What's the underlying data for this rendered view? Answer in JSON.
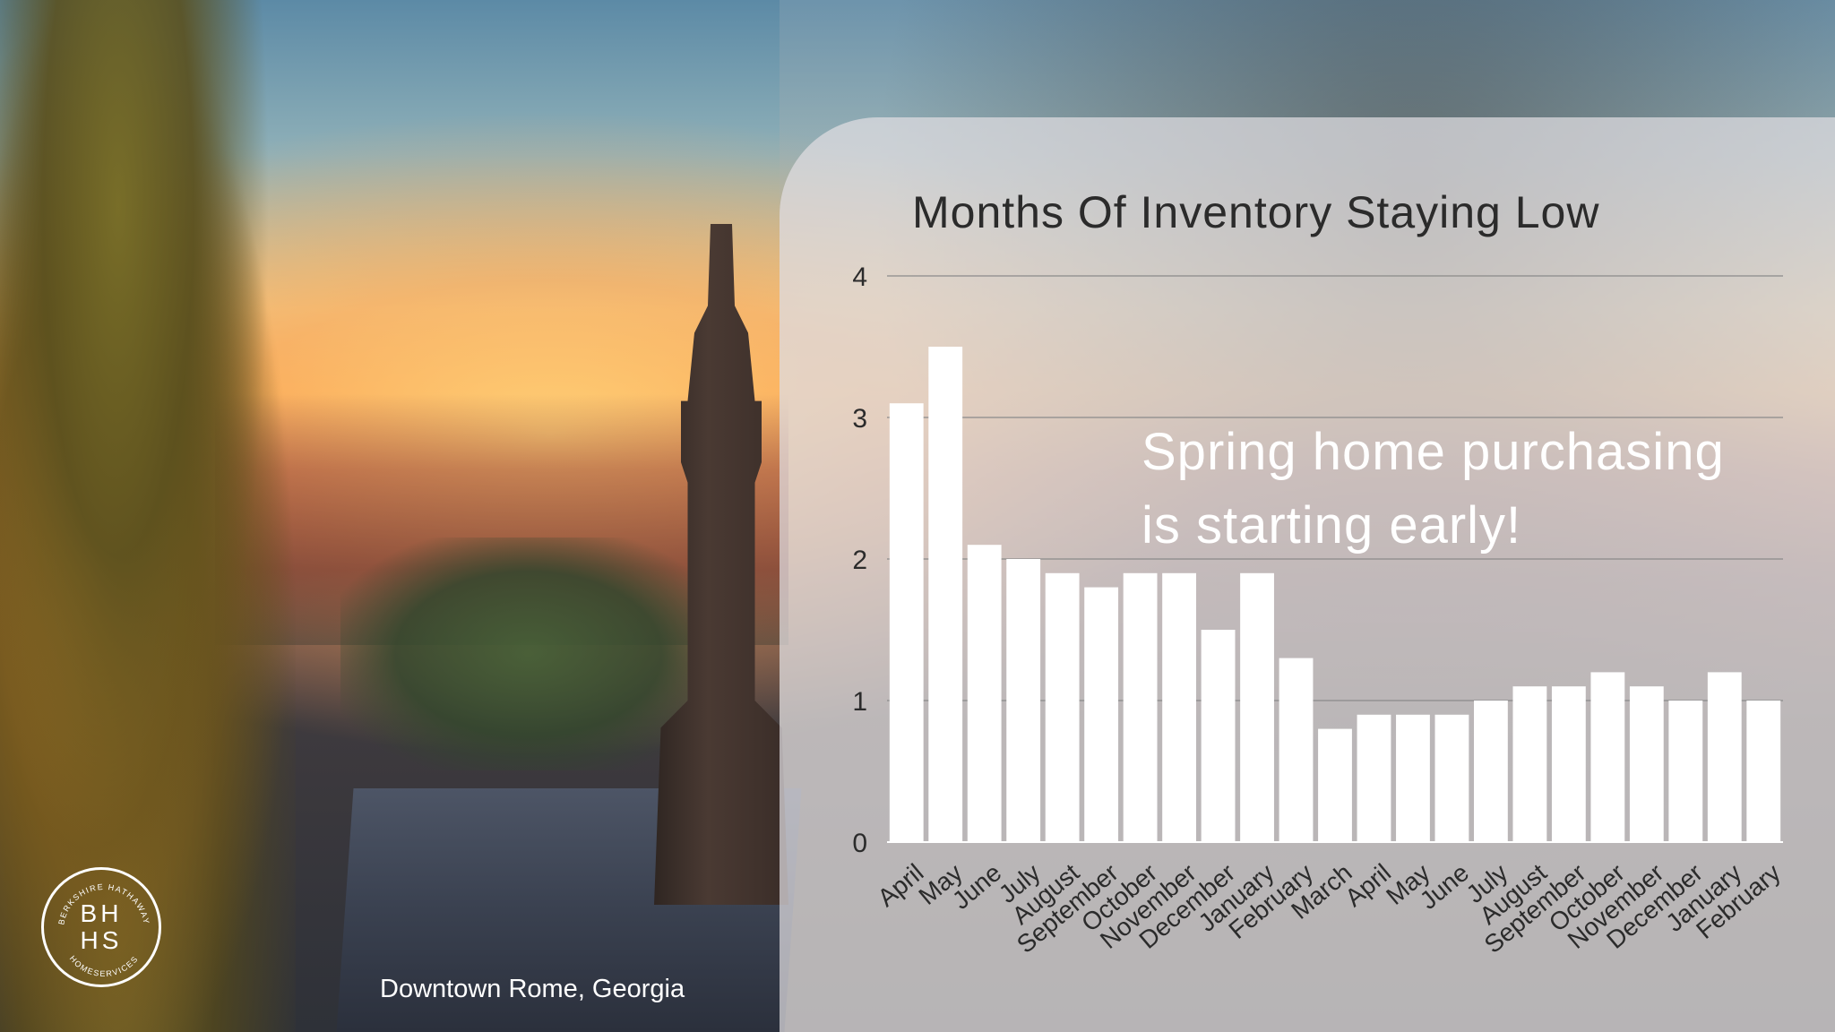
{
  "background": {
    "caption": "Downtown Rome, Georgia"
  },
  "logo": {
    "letters_top": "BH",
    "letters_bottom": "HS",
    "ring_text_top": "BERKSHIRE HATHAWAY",
    "ring_text_bottom": "HOMESERVICES"
  },
  "callout": {
    "line1": "Spring home purchasing",
    "line2": "is starting early!"
  },
  "chart_data": {
    "type": "bar",
    "title": "Months Of Inventory Staying Low",
    "xlabel": "",
    "ylabel": "",
    "ylim": [
      0,
      4
    ],
    "yticks": [
      "0",
      "1",
      "2",
      "3",
      "4"
    ],
    "grid": true,
    "categories": [
      "April",
      "May",
      "June",
      "July",
      "August",
      "September",
      "October",
      "November",
      "December",
      "January",
      "February",
      "March",
      "April",
      "May",
      "June",
      "July",
      "August",
      "September",
      "October",
      "November",
      "December",
      "January",
      "February"
    ],
    "values": [
      3.1,
      3.5,
      2.1,
      2.0,
      1.9,
      1.8,
      1.9,
      1.9,
      1.5,
      1.9,
      1.3,
      0.8,
      0.9,
      0.9,
      0.9,
      1.0,
      1.1,
      1.1,
      1.2,
      1.1,
      1.0,
      1.2,
      1.0
    ],
    "bar_color": "#ffffff",
    "grid_color": "#8a8a8a",
    "text_color": "#2b2b2b"
  }
}
